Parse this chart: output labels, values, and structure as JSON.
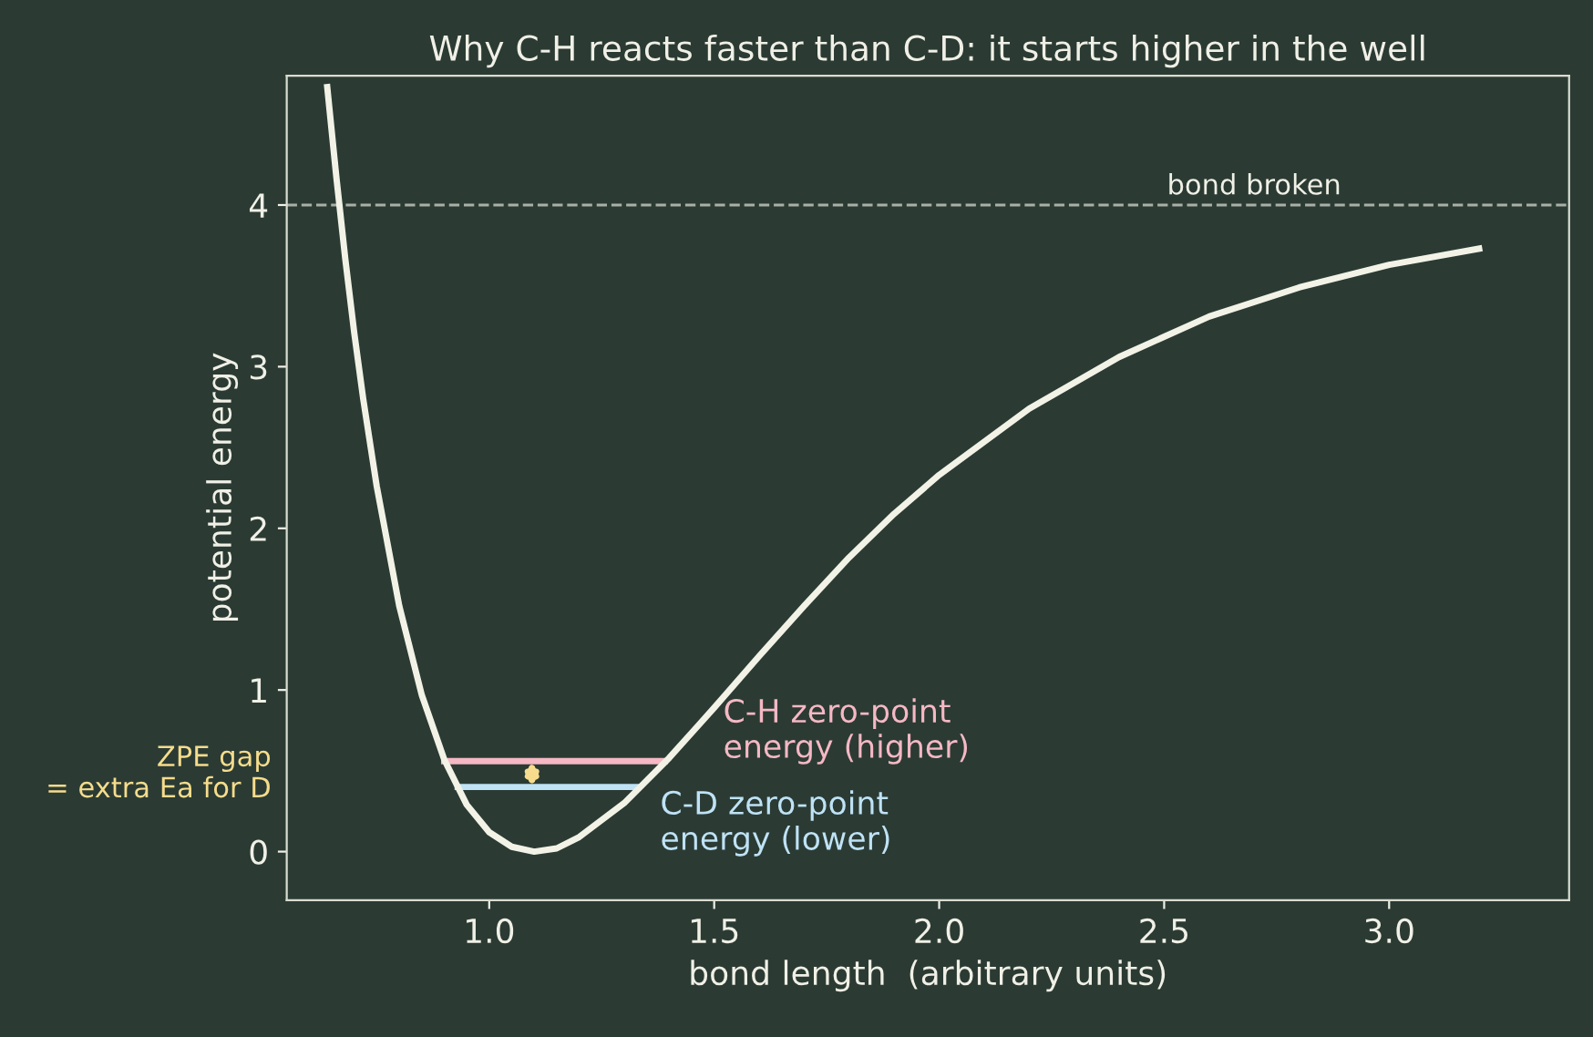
{
  "chart_data": {
    "type": "line",
    "title": "Why C-H reacts faster than C-D: it starts higher in the well",
    "xlabel": "bond length  (arbitrary units)",
    "ylabel": "potential energy",
    "xlim": [
      0.55,
      3.4
    ],
    "ylim": [
      -0.3,
      4.8
    ],
    "xticks": [
      {
        "value": 1,
        "label": "1.0"
      },
      {
        "value": 1.5,
        "label": "1.5"
      },
      {
        "value": 2,
        "label": "2.0"
      },
      {
        "value": 2.5,
        "label": "2.5"
      },
      {
        "value": 3,
        "label": "3.0"
      }
    ],
    "yticks": [
      0,
      1,
      2,
      3,
      4
    ],
    "marker": "none",
    "line_style": "solid",
    "series": [
      {
        "color": "#f2f2e6",
        "x": [
          0.64,
          0.66,
          0.68,
          0.7,
          0.72,
          0.75,
          0.8,
          0.85,
          0.9,
          0.95,
          1.0,
          1.05,
          1.1,
          1.15,
          1.2,
          1.3,
          1.4,
          1.5,
          1.6,
          1.7,
          1.8,
          1.9,
          2.0,
          2.2,
          2.4,
          2.6,
          2.8,
          3.0,
          3.2
        ],
        "values": [
          4.73,
          4.18,
          3.67,
          3.21,
          2.8,
          2.26,
          1.52,
          0.97,
          0.57,
          0.29,
          0.12,
          0.03,
          0,
          0.02,
          0.09,
          0.3,
          0.58,
          0.89,
          1.21,
          1.52,
          1.82,
          2.09,
          2.33,
          2.74,
          3.06,
          3.31,
          3.49,
          3.63,
          3.73
        ]
      },
      {
        "name": "C-H zero-point\nenergy (higher)",
        "color": "#f5b8c4",
        "x": [
          0.9,
          1.39
        ],
        "values": [
          0.56,
          0.56
        ]
      },
      {
        "name": "C-D zero-point\nenergy (lower)",
        "color": "#bfe2f5",
        "x": [
          0.93,
          1.33
        ],
        "values": [
          0.4,
          0.4
        ]
      }
    ],
    "ref_lines": [
      {
        "axis": "y",
        "value": 4,
        "label": "bond broken",
        "color": "#a9b0a8",
        "line_style": "dashed"
      }
    ],
    "annotations": [
      "ZPE gap\n= extra Ea for D"
    ]
  }
}
